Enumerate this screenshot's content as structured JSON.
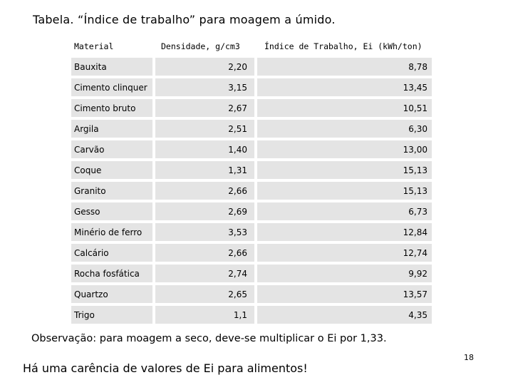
{
  "title": "Tabela. “Índice de trabalho” para moagem a úmido.",
  "table": {
    "headers": [
      "Material",
      "Densidade, g/cm3",
      "Índice de Trabalho, Ei (kWh/ton)"
    ],
    "rows": [
      [
        "Bauxita",
        "2,20",
        "8,78"
      ],
      [
        "Cimento clinquer",
        "3,15",
        "13,45"
      ],
      [
        "Cimento bruto",
        "2,67",
        "10,51"
      ],
      [
        "Argila",
        "2,51",
        "6,30"
      ],
      [
        "Carvão",
        "1,40",
        "13,00"
      ],
      [
        "Coque",
        "1,31",
        "15,13"
      ],
      [
        "Granito",
        "2,66",
        "15,13"
      ],
      [
        "Gesso",
        "2,69",
        "6,73"
      ],
      [
        "Minério de ferro",
        "3,53",
        "12,84"
      ],
      [
        "Calcário",
        "2,66",
        "12,74"
      ],
      [
        "Rocha fosfática",
        "2,74",
        "9,92"
      ],
      [
        "Quartzo",
        "2,65",
        "13,57"
      ],
      [
        "Trigo",
        "1,1",
        "4,35"
      ]
    ]
  },
  "observation": "Observação: para moagem a seco, deve-se multiplicar o Ei por 1,33.",
  "footer_note": "Há uma carência de valores de Ei para alimentos!",
  "page_number": "18"
}
